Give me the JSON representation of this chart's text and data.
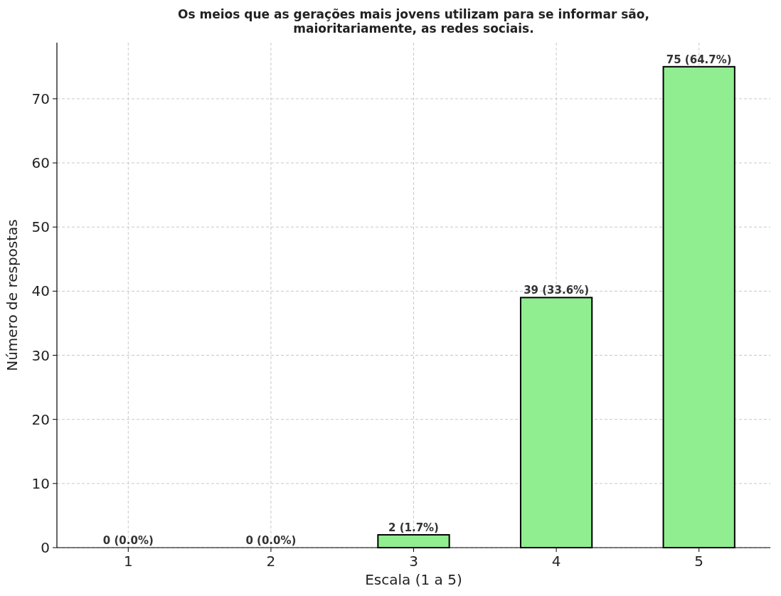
{
  "chart_data": {
    "type": "bar",
    "title": "Os meios que as gerações mais jovens utilizam para se informar são, maioritariamente, as redes sociais.",
    "xlabel": "Escala (1 a 5)",
    "ylabel": "Número de respostas",
    "categories": [
      "1",
      "2",
      "3",
      "4",
      "5"
    ],
    "values": [
      0,
      0,
      2,
      39,
      75
    ],
    "color": "#90ee90",
    "value_labels": [
      "0 (0.0%)",
      "0 (0.0%)",
      "2 (1.7%)",
      "39 (33.6%)",
      "75 (64.7%)"
    ],
    "ylim": [
      0,
      78.75
    ],
    "yticks": [
      0,
      10,
      20,
      30,
      40,
      50,
      60,
      70
    ],
    "grid": true,
    "line_style": "dashed"
  }
}
